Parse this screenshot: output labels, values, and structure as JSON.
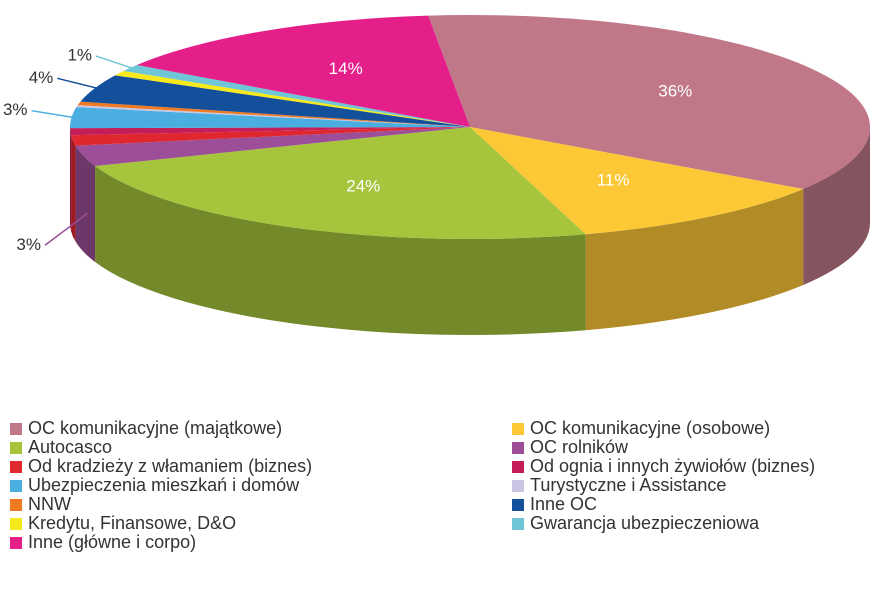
{
  "chart_data": {
    "type": "pie",
    "categories": [
      "OC komunikacyjne (majątkowe)",
      "OC komunikacyjne (osobowe)",
      "Autocasco",
      "OC rolników",
      "Od kradzieży z włamaniem (biznes)",
      "Od ognia i innych żywiołów (biznes)",
      "Ubezpieczenia mieszkań i domów",
      "Turystyczne i Assistance",
      "NNW",
      "Inne OC",
      "Kredytu, Finansowe, D&O",
      "Gwarancja ubezpieczeniowa",
      "Inne (główne i corpo)"
    ],
    "values": [
      36,
      11,
      24,
      3,
      1.5,
      1,
      3,
      0.3,
      0.5,
      4,
      0.7,
      1,
      14
    ],
    "value_labels": [
      "36%",
      "11%",
      "24%",
      "3%",
      null,
      null,
      "3%",
      null,
      null,
      "4%",
      null,
      "1%",
      "14%"
    ],
    "colors": [
      "#c07888",
      "#fdc836",
      "#a6c53c",
      "#9c4f98",
      "#e0262e",
      "#c41e5a",
      "#4aaee0",
      "#c8c6e2",
      "#ef7a22",
      "#134f9a",
      "#f6ea1c",
      "#6ec6d6",
      "#e41f8a"
    ]
  }
}
